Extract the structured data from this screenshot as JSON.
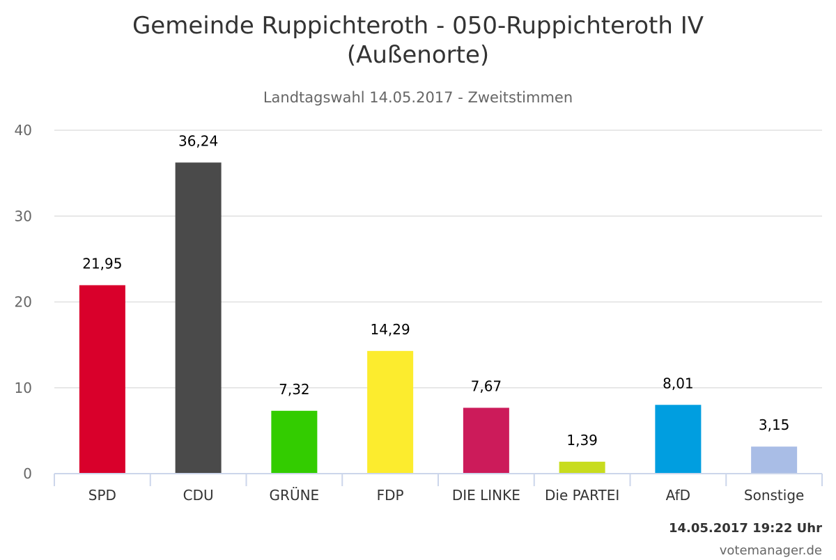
{
  "chart_data": {
    "type": "bar",
    "title_line1": "Gemeinde Ruppichteroth - 050-Ruppichteroth IV",
    "title_line2": "(Außenorte)",
    "subtitle": "Landtagswahl 14.05.2017 - Zweitstimmen",
    "categories": [
      "SPD",
      "CDU",
      "GRÜNE",
      "FDP",
      "DIE LINKE",
      "Die PARTEI",
      "AfD",
      "Sonstige"
    ],
    "values": [
      21.95,
      36.24,
      7.32,
      14.29,
      7.67,
      1.39,
      8.01,
      3.15
    ],
    "data_labels": [
      "21,95",
      "36,24",
      "7,32",
      "14,29",
      "7,67",
      "1,39",
      "8,01",
      "3,15"
    ],
    "colors": [
      "#d9002b",
      "#4a4a4a",
      "#33cc00",
      "#fcec2e",
      "#cc1b5a",
      "#c8dc1e",
      "#009ee0",
      "#a9bde6"
    ],
    "y_ticks": [
      0,
      10,
      20,
      30,
      40
    ],
    "y_tick_labels": [
      "0",
      "10",
      "20",
      "30",
      "40"
    ],
    "ylim": [
      0,
      40
    ],
    "grid": true,
    "legend": "none",
    "timestamp": "14.05.2017 19:22 Uhr",
    "credit": "votemanager.de"
  }
}
